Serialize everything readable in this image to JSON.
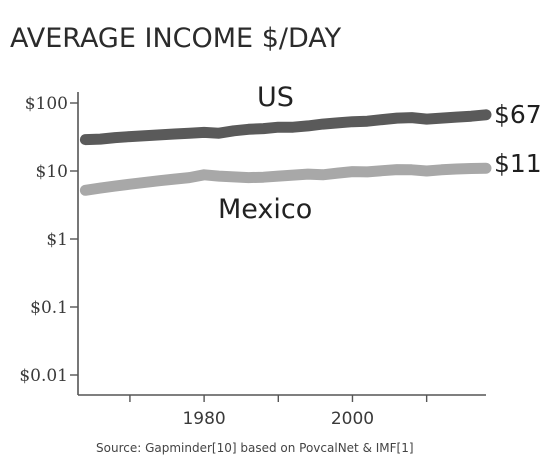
{
  "chart_data": {
    "type": "line",
    "title": "AVERAGE INCOME $/DAY",
    "source": "Source: Gapminder[10] based on PovcalNet & IMF[1]",
    "y_scale": "log",
    "ylim": [
      0.005,
      250
    ],
    "xlim": [
      1963,
      2018
    ],
    "yticks": [
      {
        "value": 100,
        "label": "$100"
      },
      {
        "value": 10,
        "label": "$10"
      },
      {
        "value": 1,
        "label": "$1"
      },
      {
        "value": 0.1,
        "label": "$0.1"
      },
      {
        "value": 0.01,
        "label": "$0.01"
      }
    ],
    "xticks": [
      {
        "value": 1970,
        "label": ""
      },
      {
        "value": 1980,
        "label": "1980"
      },
      {
        "value": 1990,
        "label": ""
      },
      {
        "value": 2000,
        "label": "2000"
      },
      {
        "value": 2010,
        "label": ""
      }
    ],
    "grid": false,
    "series": [
      {
        "name": "US",
        "color": "#5a5a5a",
        "end_label": "$67",
        "x": [
          1964,
          1966,
          1968,
          1970,
          1972,
          1974,
          1976,
          1978,
          1980,
          1982,
          1984,
          1986,
          1988,
          1990,
          1992,
          1994,
          1996,
          1998,
          2000,
          2002,
          2004,
          2006,
          2008,
          2010,
          2012,
          2014,
          2016,
          2018
        ],
        "y": [
          29,
          29.5,
          31,
          32,
          33,
          34,
          35,
          36,
          37,
          36,
          39,
          41,
          42,
          44,
          44,
          46,
          49,
          51,
          53,
          54,
          57,
          60,
          61,
          58,
          60,
          62,
          64,
          67
        ]
      },
      {
        "name": "Mexico",
        "color": "#a8a8a8",
        "end_label": "$11",
        "x": [
          1964,
          1966,
          1968,
          1970,
          1972,
          1974,
          1976,
          1978,
          1980,
          1982,
          1984,
          1986,
          1988,
          1990,
          1992,
          1994,
          1996,
          1998,
          2000,
          2002,
          2004,
          2006,
          2008,
          2010,
          2012,
          2014,
          2016,
          2018
        ],
        "y": [
          5.2,
          5.6,
          6.0,
          6.4,
          6.8,
          7.2,
          7.6,
          8.0,
          8.8,
          8.4,
          8.2,
          8.0,
          8.1,
          8.4,
          8.7,
          9.0,
          8.8,
          9.3,
          9.8,
          9.7,
          10.1,
          10.5,
          10.4,
          10.0,
          10.4,
          10.7,
          10.9,
          11.0
        ]
      }
    ]
  }
}
